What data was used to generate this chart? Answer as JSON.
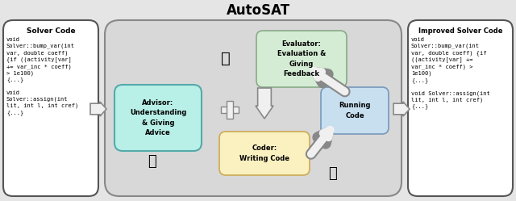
{
  "title": "AutoSAT",
  "bg_color": "#e5e5e5",
  "main_box_color": "#d8d8d8",
  "main_box_edge": "#888888",
  "evaluator_text": "Evaluator:\nEvaluation &\nGiving\nFeedback",
  "advisor_text": "Advisor:\nUnderstanding\n& Giving\nAdvice",
  "coder_text": "Coder:\nWriting Code",
  "running_text": "Running\nCode",
  "evaluator_box_color": "#d4ecd4",
  "evaluator_box_edge": "#88aa88",
  "advisor_box_color": "#b8f0e8",
  "advisor_box_edge": "#55aaaa",
  "coder_box_color": "#faf0c0",
  "coder_box_edge": "#ccaa55",
  "running_box_color": "#c8dff0",
  "running_box_edge": "#7799bb",
  "code_box_color": "#ffffff",
  "code_box_edge": "#555555",
  "arrow_fill": "#f0f0f0",
  "arrow_edge": "#888888",
  "solver_title": "Solver Code",
  "solver_code": "void\nSolver::bump_var(int\nvar, double coeff)\n{if ((activity[var]\n+= var_inc * coeff)\n> 1e100)\n{...}\n\nvoid\nSolver::assign(int\nlit, int l, int cref)\n{...}",
  "improved_title": "Improved Solver Code",
  "improved_code": "void\nSolver::bump_var(int\nvar, double coeff) {if\n((activity[var] +=\nvar_inc * coeff) >\n1e100)\n{...}\n\nvoid Solver::assign(int\nlit, int l, int cref)\n{...}",
  "font_mono": "monospace",
  "font_sans": "DejaVu Sans"
}
